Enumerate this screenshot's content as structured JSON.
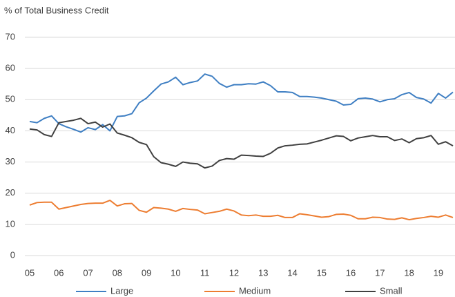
{
  "chart_data": {
    "type": "line",
    "y_axis_label": "% of Total Business Credit",
    "categories": [
      "05",
      null,
      null,
      null,
      "06",
      null,
      null,
      null,
      "07",
      null,
      null,
      null,
      "08",
      null,
      null,
      null,
      "09",
      null,
      null,
      null,
      "10",
      null,
      null,
      null,
      "11",
      null,
      null,
      null,
      "12",
      null,
      null,
      null,
      "13",
      null,
      null,
      null,
      "14",
      null,
      null,
      null,
      "15",
      null,
      null,
      null,
      "16",
      null,
      null,
      null,
      "17",
      null,
      null,
      null,
      "18",
      null,
      null,
      null,
      "19",
      null,
      null
    ],
    "series": [
      {
        "name": "Large",
        "color": "#3f7fc3",
        "values": [
          43,
          42.6,
          44,
          44.8,
          42.3,
          41.3,
          40.5,
          39.6,
          41,
          40.4,
          42,
          40,
          44.6,
          44.8,
          45.5,
          49,
          50.5,
          52.8,
          55,
          55.7,
          57.2,
          54.8,
          55.5,
          56,
          58.2,
          57.5,
          55.2,
          54,
          54.8,
          54.8,
          55.1,
          55,
          55.7,
          54.5,
          52.5,
          52.5,
          52.3,
          51,
          51,
          50.8,
          50.5,
          50,
          49.5,
          48.3,
          48.5,
          50.3,
          50.5,
          50.2,
          49.3,
          50,
          50.3,
          51.6,
          52.3,
          50.7,
          50.2,
          48.9,
          52,
          50.5,
          52.4
        ]
      },
      {
        "name": "Medium",
        "color": "#ed7d31",
        "values": [
          16.2,
          17,
          17.1,
          17.1,
          14.9,
          15.4,
          15.9,
          16.4,
          16.7,
          16.8,
          16.8,
          17.7,
          15.9,
          16.6,
          16.7,
          14.5,
          13.9,
          15.4,
          15.2,
          14.9,
          14.2,
          15.1,
          14.8,
          14.6,
          13.4,
          13.8,
          14.2,
          14.9,
          14.3,
          13,
          12.8,
          13,
          12.6,
          12.6,
          12.9,
          12.2,
          12.2,
          13.4,
          13.1,
          12.7,
          12.3,
          12.5,
          13.2,
          13.3,
          12.9,
          11.8,
          11.8,
          12.3,
          12.2,
          11.7,
          11.6,
          12.1,
          11.5,
          11.9,
          12.2,
          12.6,
          12.3,
          13,
          12.2
        ]
      },
      {
        "name": "Small",
        "color": "#404040",
        "values": [
          40.6,
          40.3,
          38.8,
          38.2,
          42.6,
          43,
          43.4,
          44,
          42.3,
          42.8,
          41.2,
          42.2,
          39.3,
          38.6,
          37.8,
          36.3,
          35.6,
          31.7,
          29.8,
          29.3,
          28.6,
          30,
          29.6,
          29.4,
          28.1,
          28.7,
          30.5,
          31.1,
          30.9,
          32.2,
          32.1,
          31.9,
          31.8,
          32.8,
          34.5,
          35.2,
          35.4,
          35.7,
          35.8,
          36.4,
          37,
          37.7,
          38.4,
          38.2,
          36.8,
          37.7,
          38.1,
          38.5,
          38.1,
          38.1,
          36.9,
          37.4,
          36.2,
          37.5,
          37.8,
          38.5,
          35.7,
          36.5,
          35.2
        ]
      }
    ],
    "ylim": [
      0,
      70
    ],
    "yticks": [
      0,
      10,
      20,
      30,
      40,
      50,
      60,
      70
    ],
    "grid": true,
    "legend": "bottom"
  }
}
